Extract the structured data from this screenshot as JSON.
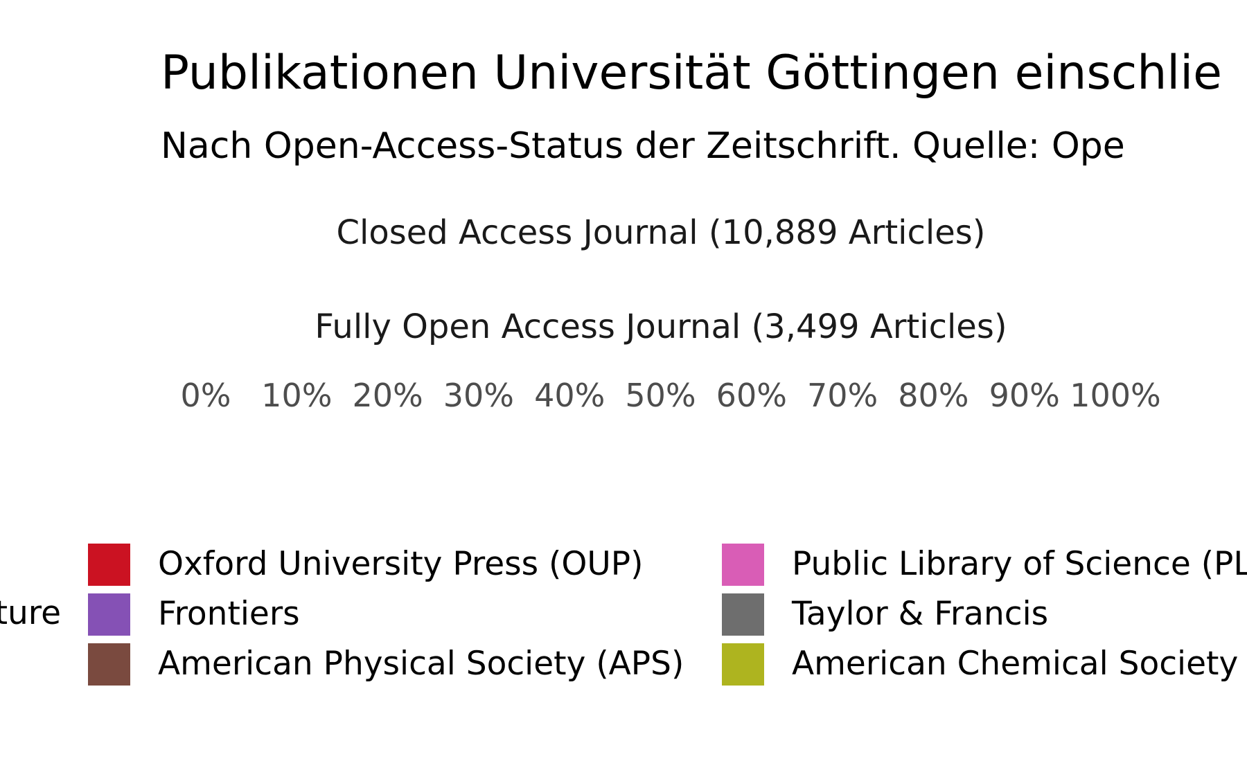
{
  "chart_data": {
    "type": "bar",
    "title": "Publikationen Universität Göttingen einschlie",
    "subtitle": "Nach Open-Access-Status der Zeitschrift. Quelle: Ope",
    "facets": [
      {
        "label": "Closed Access Journal (10,889 Articles)"
      },
      {
        "label": "Fully Open Access Journal (3,499 Articles)"
      }
    ],
    "x_axis": {
      "ticks": [
        "0%",
        "10%",
        "20%",
        "30%",
        "40%",
        "50%",
        "60%",
        "70%",
        "80%",
        "90%",
        "100%"
      ],
      "xlim": [
        0,
        1
      ]
    },
    "legend": {
      "title": "ture",
      "placement": "bottom",
      "items": [
        {
          "label": "Oxford University Press (OUP)",
          "color": "#cb1222"
        },
        {
          "label": "Frontiers",
          "color": "#8551b5"
        },
        {
          "label": "American Physical Society (APS)",
          "color": "#7a4a3f"
        },
        {
          "label": "Public Library of Science (PL",
          "color": "#d95db6"
        },
        {
          "label": "Taylor & Francis",
          "color": "#6e6e6e"
        },
        {
          "label": "American Chemical Society",
          "color": "#aeb41f"
        }
      ]
    }
  }
}
